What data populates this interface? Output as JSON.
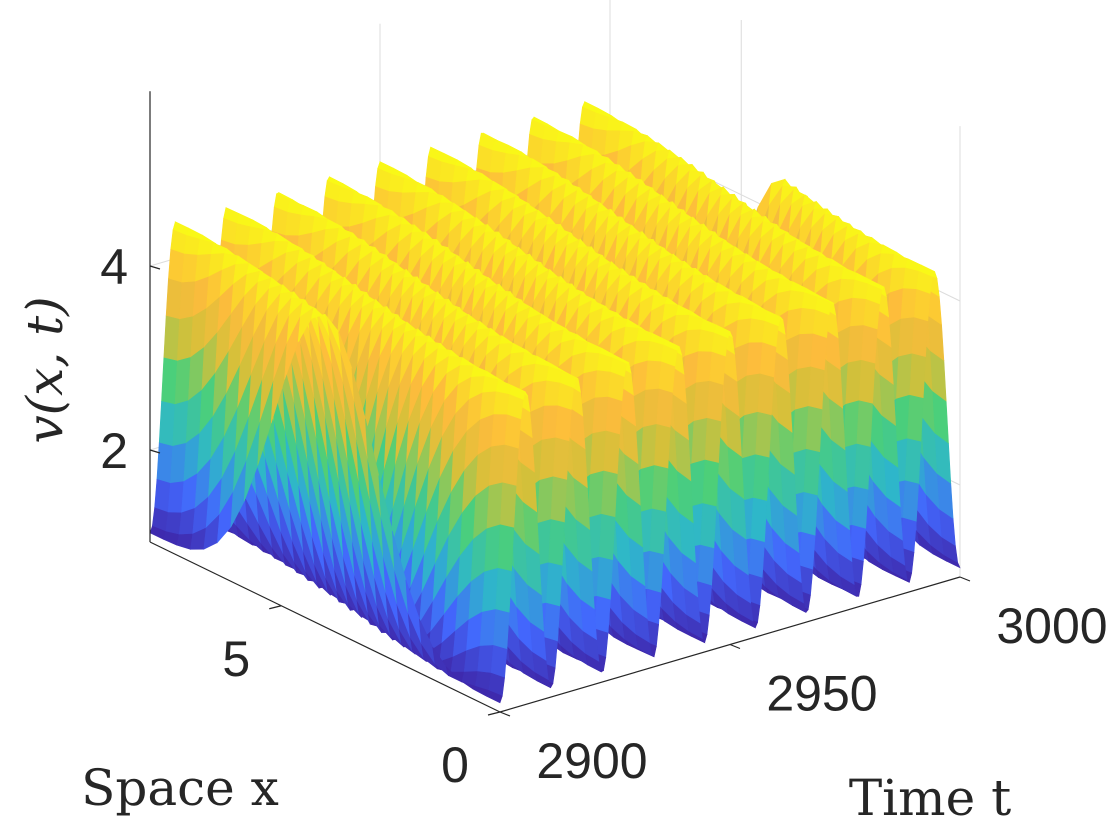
{
  "chart_data": {
    "type": "surface",
    "zlabel": "v(x, t)",
    "xlabel": "Space x",
    "ylabel": "Time t",
    "x_range": [
      0,
      8
    ],
    "t_range": [
      2900,
      3000
    ],
    "z_range": [
      1,
      5
    ],
    "x_ticks": [
      {
        "value": 0,
        "label": "0"
      },
      {
        "value": 5,
        "label": "5"
      }
    ],
    "t_ticks": [
      {
        "value": 2900,
        "label": "2900"
      },
      {
        "value": 2950,
        "label": "2950"
      },
      {
        "value": 3000,
        "label": "3000"
      }
    ],
    "z_ticks": [
      {
        "value": 2,
        "label": "2"
      },
      {
        "value": 4,
        "label": "4"
      }
    ],
    "surface_model": {
      "baseline": 2.5,
      "peaks_over_time_range": 9,
      "min_value": 1.1,
      "max_value": 4.4
    },
    "colormap": [
      "#3e26a8",
      "#4367fd",
      "#2eb7c9",
      "#4bcf7a",
      "#d4c03a",
      "#fdbc3c",
      "#f9fb15"
    ],
    "grid": true
  }
}
